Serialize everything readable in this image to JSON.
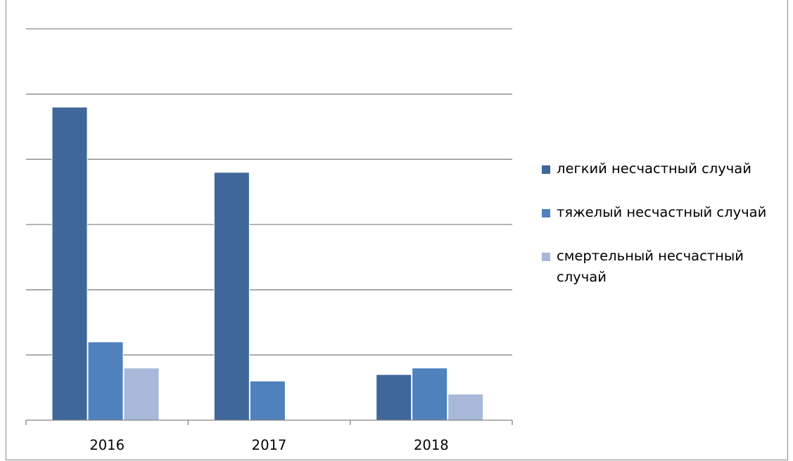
{
  "chart_data": {
    "type": "bar",
    "categories": [
      "2016",
      "2017",
      "2018"
    ],
    "series": [
      {
        "name": "легкий несчастный случай",
        "values": [
          4.8,
          3.8,
          0.7
        ],
        "color": "#3F679A"
      },
      {
        "name": "тяжелый несчастный случай",
        "values": [
          1.2,
          0.6,
          0.8
        ],
        "color": "#4F81BD"
      },
      {
        "name": "смертельный несчастный случай",
        "values": [
          0.8,
          0,
          0.4
        ],
        "color": "#A7B8D8"
      }
    ],
    "ylim": [
      0,
      6
    ],
    "gridlines": true,
    "legend_position": "right",
    "title": "",
    "xlabel": "",
    "ylabel": ""
  }
}
